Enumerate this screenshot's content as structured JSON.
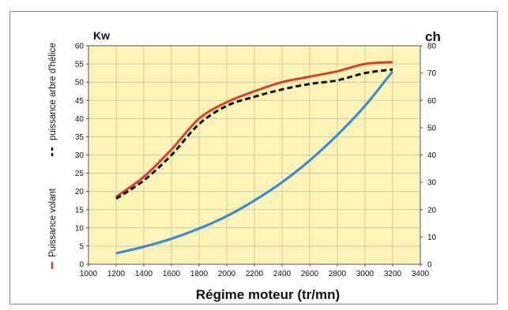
{
  "chart_data": {
    "type": "line",
    "title": "",
    "xlabel": "Régime moteur (tr/mn)",
    "ylabel_left_unit": "Kw",
    "ylabel_right_unit": "ch",
    "xlim": [
      1000,
      3400
    ],
    "ylim_left": [
      0,
      60
    ],
    "ylim_right": [
      0,
      80
    ],
    "x_ticks": [
      1000,
      1200,
      1400,
      1600,
      1800,
      2000,
      2200,
      2400,
      2600,
      2800,
      3000,
      3200,
      3400
    ],
    "y_ticks_left": [
      0,
      5,
      10,
      15,
      20,
      25,
      30,
      35,
      40,
      45,
      50,
      55,
      60
    ],
    "y_ticks_right": [
      0,
      10,
      20,
      30,
      40,
      50,
      60,
      70,
      80
    ],
    "grid": true,
    "legend_placement": "left (vertical)",
    "colors": {
      "plot_background": "#fbf4b6",
      "grid": "#c9c3a0",
      "puissance_volant": "#d9412b",
      "puissance_helice": "#111111",
      "blue_curve": "#3f8bd3"
    },
    "series": [
      {
        "name": "Puissance volant",
        "axis": "left",
        "style": "solid",
        "x": [
          1200,
          1400,
          1600,
          1800,
          2000,
          2200,
          2400,
          2600,
          2800,
          3000,
          3200
        ],
        "values": [
          18.5,
          24,
          31.5,
          40,
          44.5,
          47.5,
          50,
          51.5,
          53,
          55,
          55.5
        ]
      },
      {
        "name": "puissance arbre d'hélice",
        "axis": "left",
        "style": "dashed",
        "x": [
          1200,
          1400,
          1600,
          1800,
          2000,
          2200,
          2400,
          2600,
          2800,
          3000,
          3200
        ],
        "values": [
          18,
          23,
          30,
          38.5,
          43.5,
          46,
          48,
          49.5,
          50.5,
          52.5,
          53.5
        ]
      },
      {
        "axis": "left",
        "style": "solid",
        "x": [
          1200,
          1400,
          1600,
          1800,
          2000,
          2200,
          2400,
          2600,
          2800,
          3000,
          3200
        ],
        "values": [
          3,
          4.8,
          7,
          9.8,
          13.2,
          17.5,
          22.5,
          28.5,
          35.5,
          43.5,
          53
        ]
      }
    ]
  }
}
